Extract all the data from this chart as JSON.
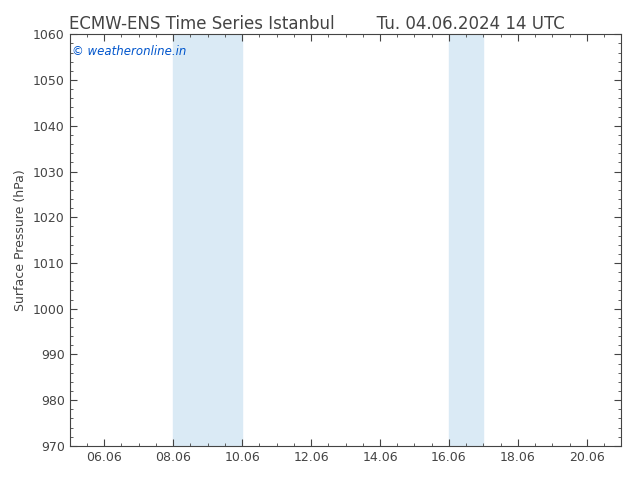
{
  "title": "ECMW-ENS Time Series Istanbul",
  "title_right": "Tu. 04.06.2024 14 UTC",
  "ylabel": "Surface Pressure (hPa)",
  "ylim": [
    970,
    1060
  ],
  "yticks": [
    970,
    980,
    990,
    1000,
    1010,
    1020,
    1030,
    1040,
    1050,
    1060
  ],
  "xtick_labels": [
    "06.06",
    "08.06",
    "10.06",
    "12.06",
    "14.06",
    "16.06",
    "18.06",
    "20.06"
  ],
  "xtick_positions": [
    2.0,
    4.0,
    6.0,
    8.0,
    10.0,
    12.0,
    14.0,
    16.0
  ],
  "xlim": [
    1.0,
    17.0
  ],
  "shaded_regions": [
    {
      "xmin": 4.0,
      "xmax": 6.0
    },
    {
      "xmin": 12.0,
      "xmax": 13.0
    }
  ],
  "shaded_color": "#daeaf5",
  "watermark_text": "© weatheronline.in",
  "watermark_color": "#0055cc",
  "background_color": "#ffffff",
  "axes_background": "#ffffff",
  "spine_color": "#444444",
  "tick_color": "#444444",
  "title_fontsize": 12,
  "label_fontsize": 9,
  "tick_fontsize": 9
}
